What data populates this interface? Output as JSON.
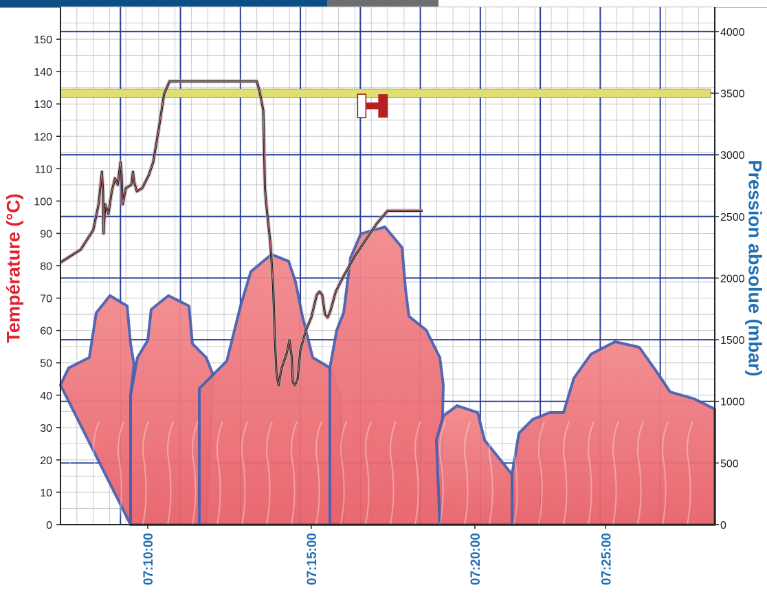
{
  "chart_data": {
    "type": "line",
    "ylabel_left": "Température (°C)",
    "ylabel_right": "Pression absolue (mbar)",
    "y_left": {
      "lim": [
        0,
        160
      ],
      "ticks": [
        0,
        10,
        20,
        30,
        40,
        50,
        60,
        70,
        80,
        90,
        100,
        110,
        120,
        130,
        140,
        150
      ]
    },
    "y_right": {
      "lim": [
        0,
        4200
      ],
      "ticks": [
        0,
        500,
        1000,
        1500,
        2000,
        2500,
        3000,
        3500,
        4000
      ]
    },
    "x_ticks": [
      "07:10:00",
      "07:15:00",
      "07:20:00",
      "07:25:00"
    ],
    "x_range": [
      "07:07:20",
      "07:27:20"
    ],
    "grid": true,
    "series": [
      {
        "axis": "right",
        "style": "band",
        "color": "#e0e070",
        "values": [
          [
            0,
            3500
          ],
          [
            1200,
            3500
          ]
        ]
      },
      {
        "axis": "left",
        "color": "#1a1a1a",
        "values": [
          [
            0,
            81
          ],
          [
            37,
            85
          ],
          [
            60,
            91
          ],
          [
            70,
            99
          ],
          [
            73,
            104
          ],
          [
            76,
            109
          ],
          [
            78,
            103
          ],
          [
            79,
            90
          ],
          [
            82,
            99
          ],
          [
            88,
            96
          ],
          [
            94,
            103
          ],
          [
            100,
            107
          ],
          [
            105,
            105
          ],
          [
            110,
            112
          ],
          [
            112,
            108
          ],
          [
            114,
            99
          ],
          [
            120,
            104
          ],
          [
            130,
            105
          ],
          [
            133,
            109
          ],
          [
            135,
            106
          ],
          [
            140,
            103
          ],
          [
            150,
            104
          ],
          [
            162,
            108
          ],
          [
            170,
            112
          ],
          [
            180,
            122
          ],
          [
            190,
            133
          ],
          [
            200,
            137
          ],
          [
            210,
            137
          ],
          [
            340,
            137
          ],
          [
            360,
            137
          ],
          [
            365,
            134
          ],
          [
            372,
            128
          ],
          [
            375,
            104
          ],
          [
            378,
            98
          ],
          [
            385,
            87
          ],
          [
            390,
            74
          ],
          [
            393,
            58
          ],
          [
            396,
            47
          ],
          [
            400,
            43
          ],
          [
            405,
            48
          ],
          [
            415,
            53
          ],
          [
            420,
            57
          ],
          [
            424,
            52
          ],
          [
            426,
            44
          ],
          [
            430,
            43
          ],
          [
            435,
            45
          ],
          [
            440,
            54
          ],
          [
            450,
            60
          ],
          [
            460,
            64
          ],
          [
            470,
            71
          ],
          [
            475,
            72
          ],
          [
            480,
            71
          ],
          [
            485,
            65
          ],
          [
            490,
            64
          ],
          [
            495,
            66
          ],
          [
            505,
            72
          ],
          [
            520,
            77
          ],
          [
            540,
            83
          ],
          [
            560,
            88
          ],
          [
            580,
            93
          ],
          [
            600,
            97
          ],
          [
            640,
            97
          ],
          [
            664,
            97
          ]
        ]
      }
    ],
    "annotations": [
      {
        "type": "icon",
        "name": "h-marker",
        "color": "#b82020"
      }
    ]
  }
}
